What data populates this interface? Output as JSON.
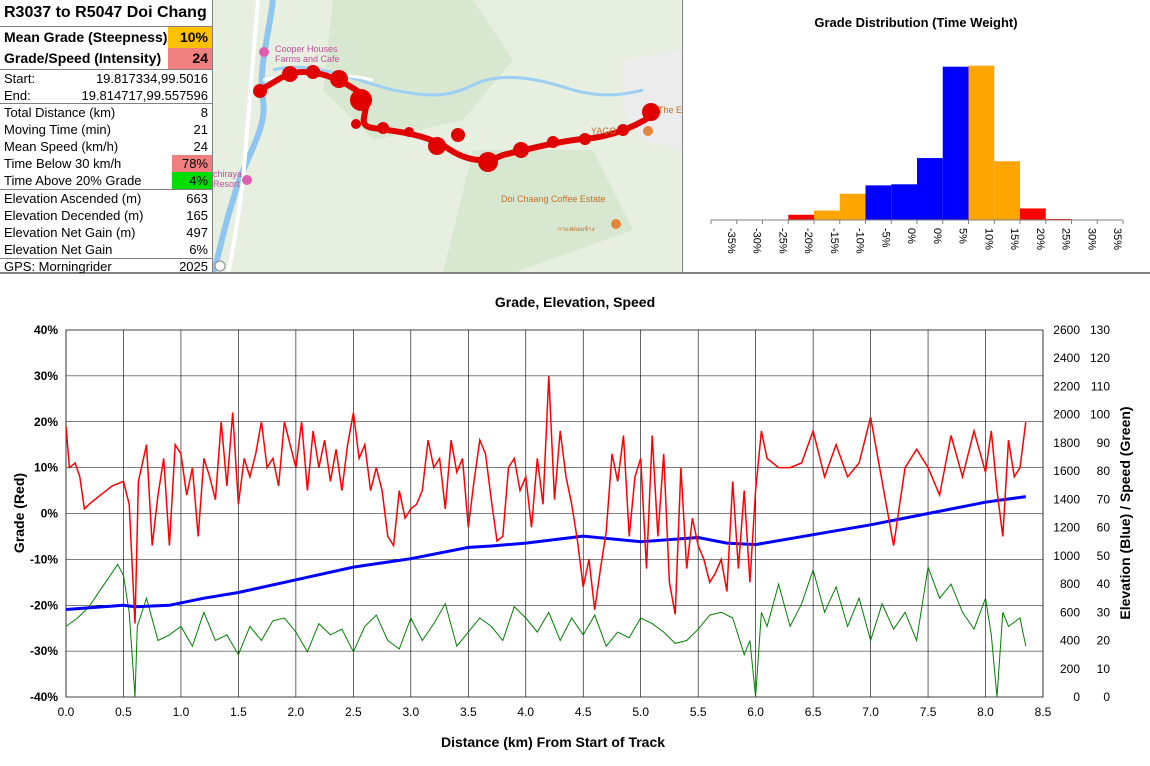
{
  "stats": {
    "title": "R3037 to R5047 Doi Chang",
    "mean_grade_label": "Mean Grade (Steepness)",
    "mean_grade_value": "10%",
    "intensity_label": "Grade/Speed (Intensity)",
    "intensity_value": "24",
    "start_label": "Start:",
    "start_value": "19.817334,99.5016",
    "end_label": "End:",
    "end_value": "19.814717,99.557596",
    "rows1": [
      {
        "label": "Total Distance (km)",
        "value": "8"
      },
      {
        "label": "Moving Time (min)",
        "value": "21"
      },
      {
        "label": "Mean Speed (km/h)",
        "value": "24"
      },
      {
        "label": "Time Below 30 km/h",
        "value": "78%"
      },
      {
        "label": "Time Above 20% Grade",
        "value": "4%"
      }
    ],
    "rows2": [
      {
        "label": "Elevation Ascended (m)",
        "value": "663"
      },
      {
        "label": "Elevation Decended (m)",
        "value": "165"
      },
      {
        "label": "Elevation Net Gain (m)",
        "value": "497"
      },
      {
        "label": "Elevation Net Gain",
        "value": "6%"
      }
    ],
    "gps_label": "GPS: Morningrider",
    "gps_year": "2025",
    "colors": {
      "mean_grade": "#ffc000",
      "intensity": "#f08080",
      "below30": "#f08080",
      "above20": "#00dd00"
    }
  },
  "map": {
    "labels": [
      "Cooper Houses",
      "Farms and Cafe",
      "Doi Chaang Coffee Estate",
      "กาแฟดอยช้าง",
      "chiraya",
      "Resort",
      "YAGO",
      "The E"
    ]
  },
  "histogram": {
    "chart_data": {
      "type": "bar",
      "title": "Grade Distribution (Time Weight)",
      "categories": [
        "-35%",
        "-30%",
        "-25%",
        "-20%",
        "-15%",
        "-10%",
        "-5%",
        "0%",
        "0%",
        "5%",
        "10%",
        "15%",
        "20%",
        "25%",
        "30%",
        "35%"
      ],
      "values": [
        0,
        0,
        0.2,
        2.5,
        4.5,
        12.5,
        16.5,
        17,
        29.5,
        73,
        73.5,
        28,
        5.5,
        0.5,
        0,
        0
      ],
      "colors": [
        "#ff0000",
        "#ff0000",
        "#ff0000",
        "#ff0000",
        "#ffa500",
        "#ffa500",
        "#0000ff",
        "#0000ff",
        "#0000ff",
        "#0000ff",
        "#ffa500",
        "#ffa500",
        "#ff0000",
        "#ff0000",
        "#ff0000",
        "#ff0000"
      ],
      "ylim": [
        0,
        80
      ]
    }
  },
  "main_chart": {
    "chart_data": {
      "type": "line",
      "title": "Grade, Elevation, Speed",
      "xlabel": "Distance (km) From Start of Track",
      "ylabel_left": "Grade (Red)",
      "ylabel_right": "Elevation (Blue) / Speed (Green)",
      "xlim": [
        0,
        8.5
      ],
      "x_ticks": [
        "0.0",
        "0.5",
        "1.0",
        "1.5",
        "2.0",
        "2.5",
        "3.0",
        "3.5",
        "4.0",
        "4.5",
        "5.0",
        "5.5",
        "6.0",
        "6.5",
        "7.0",
        "7.5",
        "8.0",
        "8.5"
      ],
      "ylim_left": [
        -40,
        40
      ],
      "y_ticks_left": [
        "40%",
        "30%",
        "20%",
        "10%",
        "0%",
        "-10%",
        "-20%",
        "-30%",
        "-40%"
      ],
      "ylim_elev": [
        0,
        2600
      ],
      "y_ticks_elev": [
        "2600",
        "2400",
        "2200",
        "2000",
        "1800",
        "1600",
        "1400",
        "1200",
        "1000",
        "800",
        "600",
        "400",
        "200",
        "0"
      ],
      "ylim_speed": [
        0,
        130
      ],
      "y_ticks_speed": [
        "130",
        "120",
        "110",
        "100",
        "90",
        "80",
        "70",
        "60",
        "50",
        "40",
        "30",
        "20",
        "10",
        "0"
      ],
      "series": [
        {
          "name": "Grade",
          "color": "#ff0000",
          "x": [
            0,
            0.03,
            0.08,
            0.12,
            0.16,
            0.2,
            0.3,
            0.4,
            0.5,
            0.55,
            0.6,
            0.63,
            0.7,
            0.75,
            0.8,
            0.85,
            0.9,
            0.95,
            1.0,
            1.05,
            1.1,
            1.15,
            1.2,
            1.25,
            1.3,
            1.35,
            1.4,
            1.45,
            1.5,
            1.55,
            1.6,
            1.65,
            1.7,
            1.75,
            1.8,
            1.85,
            1.9,
            1.95,
            2.0,
            2.05,
            2.1,
            2.15,
            2.2,
            2.25,
            2.3,
            2.35,
            2.4,
            2.45,
            2.5,
            2.55,
            2.6,
            2.65,
            2.7,
            2.75,
            2.8,
            2.85,
            2.9,
            2.95,
            3.0,
            3.05,
            3.1,
            3.15,
            3.2,
            3.25,
            3.3,
            3.35,
            3.4,
            3.45,
            3.5,
            3.55,
            3.6,
            3.65,
            3.7,
            3.75,
            3.8,
            3.85,
            3.9,
            3.95,
            4.0,
            4.05,
            4.1,
            4.15,
            4.2,
            4.25,
            4.3,
            4.35,
            4.4,
            4.45,
            4.5,
            4.55,
            4.6,
            4.65,
            4.7,
            4.75,
            4.8,
            4.85,
            4.9,
            4.95,
            5.0,
            5.05,
            5.1,
            5.15,
            5.2,
            5.25,
            5.3,
            5.35,
            5.4,
            5.45,
            5.5,
            5.55,
            5.6,
            5.65,
            5.7,
            5.75,
            5.8,
            5.85,
            5.9,
            5.95,
            6.0,
            6.05,
            6.1,
            6.2,
            6.3,
            6.4,
            6.5,
            6.6,
            6.7,
            6.8,
            6.9,
            7.0,
            7.1,
            7.2,
            7.3,
            7.4,
            7.5,
            7.6,
            7.7,
            7.8,
            7.9,
            8.0,
            8.05,
            8.1,
            8.15,
            8.2,
            8.25,
            8.3,
            8.35
          ],
          "y": [
            19,
            10,
            11,
            8,
            1,
            2,
            4,
            6,
            7,
            2,
            -24,
            7,
            15,
            -7,
            4,
            12,
            -7,
            15,
            13,
            4,
            10,
            -5,
            12,
            8,
            3,
            20,
            6,
            22,
            2,
            12,
            8,
            13,
            20,
            10,
            12,
            6,
            20,
            15,
            10,
            20,
            5,
            18,
            10,
            16,
            7,
            14,
            5,
            15,
            22,
            12,
            15,
            5,
            10,
            5,
            -5,
            -7,
            5,
            -1,
            1,
            2,
            5,
            16,
            10,
            12,
            1,
            16,
            9,
            12,
            -3,
            7,
            16,
            13,
            3,
            -6,
            -5,
            10,
            12,
            5,
            8,
            -3,
            12,
            2,
            30,
            3,
            18,
            8,
            2,
            -6,
            -16,
            -10,
            -21,
            -12,
            -4,
            13,
            7,
            17,
            -5,
            8,
            12,
            -12,
            17,
            -5,
            13,
            -15,
            -22,
            10,
            -12,
            -1,
            -7,
            -10,
            -15,
            -13,
            -10,
            -17,
            7,
            -12,
            5,
            -15,
            5,
            18,
            12,
            10,
            10,
            11,
            18,
            8,
            15,
            8,
            11,
            21,
            7,
            -7,
            10,
            14,
            10,
            4,
            17,
            8,
            18,
            9,
            18,
            5,
            -5,
            16,
            8,
            10,
            20
          ]
        },
        {
          "name": "Elevation",
          "color": "#0000ff",
          "x": [
            0,
            0.5,
            0.6,
            0.9,
            1.2,
            1.5,
            2.0,
            2.5,
            3.0,
            3.5,
            3.7,
            4.0,
            4.5,
            5.0,
            5.5,
            5.75,
            6.0,
            6.5,
            7.0,
            7.5,
            8.0,
            8.35
          ],
          "y": [
            620,
            650,
            640,
            650,
            700,
            740,
            830,
            920,
            980,
            1060,
            1070,
            1090,
            1140,
            1100,
            1130,
            1090,
            1080,
            1150,
            1220,
            1300,
            1380,
            1420
          ]
        },
        {
          "name": "Speed",
          "color": "#008000",
          "x": [
            0,
            0.1,
            0.2,
            0.3,
            0.4,
            0.45,
            0.5,
            0.55,
            0.6,
            0.62,
            0.7,
            0.8,
            0.9,
            1.0,
            1.1,
            1.2,
            1.3,
            1.4,
            1.5,
            1.6,
            1.7,
            1.8,
            1.9,
            2.0,
            2.1,
            2.2,
            2.3,
            2.4,
            2.5,
            2.6,
            2.7,
            2.8,
            2.9,
            3.0,
            3.1,
            3.2,
            3.3,
            3.4,
            3.5,
            3.6,
            3.7,
            3.8,
            3.9,
            4.0,
            4.1,
            4.2,
            4.3,
            4.4,
            4.5,
            4.6,
            4.7,
            4.8,
            4.9,
            5.0,
            5.1,
            5.2,
            5.3,
            5.4,
            5.5,
            5.6,
            5.7,
            5.8,
            5.9,
            5.95,
            6.0,
            6.05,
            6.1,
            6.2,
            6.3,
            6.4,
            6.5,
            6.6,
            6.7,
            6.8,
            6.9,
            7.0,
            7.1,
            7.2,
            7.3,
            7.4,
            7.5,
            7.6,
            7.7,
            7.8,
            7.9,
            8.0,
            8.05,
            8.1,
            8.15,
            8.2,
            8.3,
            8.35
          ],
          "y": [
            25,
            28,
            32,
            38,
            44,
            47,
            43,
            30,
            0,
            25,
            35,
            20,
            22,
            25,
            18,
            30,
            20,
            22,
            15,
            25,
            20,
            27,
            28,
            23,
            16,
            26,
            22,
            24,
            16,
            25,
            29,
            20,
            17,
            28,
            20,
            26,
            33,
            18,
            23,
            28,
            25,
            20,
            32,
            28,
            23,
            30,
            20,
            28,
            22,
            29,
            18,
            23,
            21,
            28,
            26,
            23,
            19,
            20,
            24,
            29,
            30,
            28,
            15,
            20,
            0,
            30,
            25,
            40,
            25,
            33,
            45,
            30,
            39,
            25,
            35,
            20,
            33,
            24,
            30,
            20,
            46,
            35,
            40,
            30,
            24,
            35,
            22,
            0,
            30,
            25,
            28,
            18
          ]
        }
      ]
    }
  }
}
